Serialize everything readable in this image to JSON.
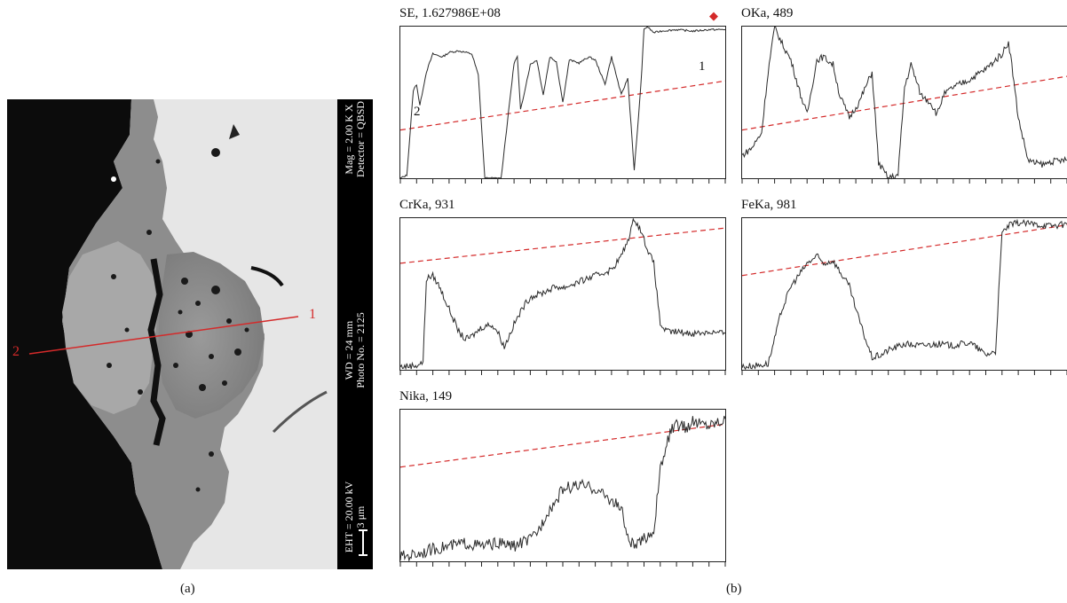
{
  "figure": {
    "panel_a_label": "(a)",
    "panel_b_label": "(b)"
  },
  "sem": {
    "info": {
      "mag": "Mag = 2.00 K X",
      "detector": "Detector = QBSD",
      "wd": "WD = 24 mm",
      "photo": "Photo No. = 2125",
      "eht": "EHT = 20.00 kV",
      "scale": "3 μm"
    },
    "line_start_label": "1",
    "line_end_label": "2",
    "colors": {
      "line": "#d42a2a",
      "sidebar": "#000000"
    }
  },
  "plots": [
    {
      "id": "se",
      "title": "SE, 1.627986E+08",
      "marker": "◆",
      "start_label": "1",
      "end_label": "2"
    },
    {
      "id": "oka",
      "title": "OKa, 489"
    },
    {
      "id": "crka",
      "title": "CrKa, 931"
    },
    {
      "id": "feka",
      "title": "FeKa, 981"
    },
    {
      "id": "nika",
      "title": "Nika, 149"
    }
  ],
  "chart_data": [
    {
      "type": "line",
      "title": "SE, 1.627986E+08",
      "ylim": [
        0,
        100
      ],
      "x": [
        0,
        2,
        4,
        5,
        6,
        8,
        10,
        13,
        15,
        18,
        20,
        22,
        24,
        26,
        28,
        31,
        35,
        36,
        37,
        40,
        42,
        44,
        46,
        48,
        50,
        52,
        55,
        58,
        60,
        63,
        65,
        68,
        70,
        72,
        74,
        75,
        76,
        78,
        80,
        85,
        90,
        95,
        100
      ],
      "values": [
        0,
        2,
        58,
        62,
        48,
        70,
        82,
        80,
        83,
        84,
        83,
        82,
        68,
        0,
        0,
        0,
        76,
        80,
        45,
        75,
        78,
        55,
        80,
        77,
        50,
        78,
        76,
        80,
        78,
        62,
        80,
        55,
        66,
        5,
        60,
        98,
        100,
        96,
        97,
        98,
        97,
        98,
        98
      ]
    },
    {
      "type": "line",
      "title": "OKa, 489",
      "ylim": [
        0,
        100
      ],
      "x": [
        0,
        3,
        6,
        8,
        10,
        12,
        15,
        18,
        20,
        23,
        25,
        28,
        30,
        33,
        36,
        40,
        42,
        45,
        48,
        50,
        52,
        55,
        58,
        60,
        62,
        65,
        70,
        75,
        78,
        80,
        82,
        83,
        85,
        88,
        90,
        93,
        95,
        100
      ],
      "values": [
        15,
        20,
        30,
        70,
        100,
        90,
        78,
        55,
        42,
        78,
        80,
        75,
        55,
        40,
        50,
        70,
        10,
        0,
        2,
        60,
        75,
        55,
        50,
        42,
        55,
        60,
        65,
        72,
        78,
        82,
        90,
        75,
        40,
        12,
        10,
        9,
        11,
        12
      ]
    },
    {
      "type": "line",
      "title": "CrKa, 931",
      "ylim": [
        0,
        100
      ],
      "x": [
        0,
        5,
        7,
        8,
        10,
        12,
        15,
        18,
        20,
        22,
        25,
        28,
        30,
        32,
        35,
        38,
        40,
        43,
        45,
        48,
        50,
        55,
        60,
        65,
        68,
        70,
        72,
        74,
        76,
        78,
        80,
        82,
        85,
        90,
        95,
        100
      ],
      "values": [
        2,
        3,
        5,
        60,
        62,
        55,
        40,
        25,
        20,
        22,
        28,
        30,
        25,
        15,
        30,
        42,
        48,
        50,
        52,
        55,
        54,
        58,
        62,
        66,
        75,
        85,
        100,
        92,
        80,
        70,
        30,
        25,
        25,
        24,
        25,
        24
      ]
    },
    {
      "type": "line",
      "title": "FeKa, 981",
      "ylim": [
        0,
        100
      ],
      "x": [
        0,
        5,
        8,
        10,
        12,
        15,
        20,
        23,
        25,
        28,
        30,
        33,
        35,
        38,
        40,
        43,
        45,
        50,
        55,
        60,
        65,
        70,
        72,
        75,
        78,
        80,
        82,
        85,
        90,
        95,
        100
      ],
      "values": [
        2,
        3,
        4,
        20,
        38,
        55,
        70,
        75,
        70,
        72,
        65,
        55,
        40,
        20,
        8,
        10,
        13,
        17,
        16,
        17,
        16,
        18,
        15,
        10,
        12,
        90,
        95,
        97,
        96,
        95,
        96
      ]
    },
    {
      "type": "line",
      "title": "Nika, 149",
      "ylim": [
        0,
        100
      ],
      "x": [
        0,
        5,
        10,
        15,
        20,
        25,
        30,
        35,
        38,
        40,
        43,
        45,
        48,
        50,
        55,
        60,
        65,
        68,
        70,
        72,
        74,
        75,
        78,
        80,
        83,
        85,
        88,
        90,
        95,
        100
      ],
      "values": [
        3,
        5,
        8,
        10,
        12,
        10,
        12,
        10,
        13,
        14,
        22,
        32,
        40,
        48,
        50,
        48,
        40,
        35,
        15,
        10,
        12,
        15,
        20,
        60,
        85,
        90,
        88,
        92,
        90,
        94
      ]
    }
  ]
}
